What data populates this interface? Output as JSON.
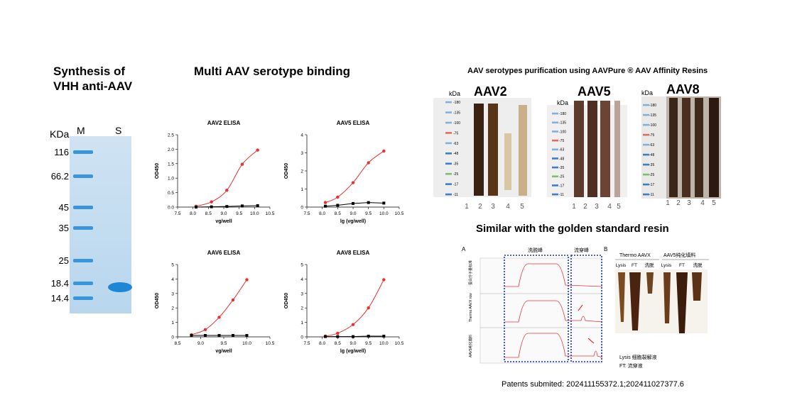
{
  "sections": {
    "synthesis_title": [
      "Synthesis of",
      "VHH anti-AAV"
    ],
    "binding_title": "Multi AAV serotype binding",
    "purification_title": "AAV serotypes purification using AAVPure ® AAV Affinity Resins",
    "similar_title": "Similar with the golden standard resin",
    "patents": "Patents submited: 202411155372.1;202411027377.6"
  },
  "gel_sds": {
    "kda_label": "KDa",
    "lane_labels": [
      "M",
      "S"
    ],
    "marker_labels": [
      "116",
      "66.2",
      "45",
      "35",
      "25",
      "18.4",
      "14.4"
    ]
  },
  "elisa": [
    {
      "title": "AAV2 ELISA",
      "xlabel": "vg/well",
      "ylabel": "OD450",
      "xticks": [
        "7.5",
        "8.0",
        "8.5",
        "9.0",
        "9.5",
        "10.0",
        "10.5"
      ],
      "xmin": 7.5,
      "xmax": 10.5,
      "yticks": [
        "0.0",
        "0.5",
        "1.0",
        "1.5",
        "2.0",
        "2.5"
      ],
      "ymax": 2.5,
      "red": [
        [
          8.1,
          0.03
        ],
        [
          8.6,
          0.18
        ],
        [
          9.1,
          0.58
        ],
        [
          9.6,
          1.48
        ],
        [
          10.1,
          1.97
        ]
      ],
      "black": [
        [
          8.1,
          0.0
        ],
        [
          8.6,
          0.01
        ],
        [
          9.1,
          0.02
        ],
        [
          9.6,
          0.04
        ],
        [
          10.1,
          0.05
        ]
      ]
    },
    {
      "title": "AAV5 ELISA",
      "xlabel": "lg (vg/well)",
      "ylabel": "OD450",
      "xticks": [
        "7.5",
        "8.0",
        "8.5",
        "9.0",
        "9.5",
        "10.0",
        "10.5"
      ],
      "xmin": 7.5,
      "xmax": 10.5,
      "yticks": [
        "0",
        "1",
        "2",
        "3",
        "4"
      ],
      "ymax": 4,
      "red": [
        [
          8.1,
          0.25
        ],
        [
          8.5,
          0.55
        ],
        [
          9.0,
          1.35
        ],
        [
          9.5,
          2.45
        ],
        [
          10.0,
          3.1
        ]
      ],
      "black": [
        [
          8.1,
          0.05
        ],
        [
          8.5,
          0.1
        ],
        [
          9.0,
          0.2
        ],
        [
          9.5,
          0.25
        ],
        [
          10.0,
          0.22
        ]
      ]
    },
    {
      "title": "AAV6 ELISA",
      "xlabel": "vg/well",
      "ylabel": "OD450",
      "xticks": [
        "8.5",
        "9.0",
        "9.5",
        "10.0",
        "10.5"
      ],
      "xmin": 8.5,
      "xmax": 10.5,
      "yticks": [
        "0",
        "1",
        "2",
        "3",
        "4",
        "5"
      ],
      "ymax": 5,
      "red": [
        [
          8.8,
          0.15
        ],
        [
          9.1,
          0.5
        ],
        [
          9.4,
          1.35
        ],
        [
          9.7,
          2.55
        ],
        [
          10.0,
          3.95
        ]
      ],
      "black": [
        [
          8.8,
          0.1
        ],
        [
          9.1,
          0.1
        ],
        [
          9.4,
          0.1
        ],
        [
          9.7,
          0.1
        ],
        [
          10.0,
          0.1
        ]
      ]
    },
    {
      "title": "AAV8 ELISA",
      "xlabel": "lg (vg/well)",
      "ylabel": "OD450",
      "xticks": [
        "7.5",
        "8.0",
        "8.5",
        "9.0",
        "9.5",
        "10.0",
        "10.5"
      ],
      "xmin": 7.5,
      "xmax": 10.5,
      "yticks": [
        "0",
        "1",
        "2",
        "3",
        "4",
        "5"
      ],
      "ymax": 5,
      "red": [
        [
          8.1,
          0.05
        ],
        [
          8.5,
          0.25
        ],
        [
          9.0,
          0.85
        ],
        [
          9.5,
          2.0
        ],
        [
          10.0,
          3.95
        ]
      ],
      "black": [
        [
          8.1,
          0.02
        ],
        [
          8.5,
          0.02
        ],
        [
          9.0,
          0.02
        ],
        [
          9.5,
          0.05
        ],
        [
          10.0,
          0.05
        ]
      ]
    }
  ],
  "purification_gels": [
    {
      "name": "AAV2",
      "kda": "kDa",
      "lanes": [
        "1",
        "2",
        "3",
        "4",
        "5"
      ]
    },
    {
      "name": "AAV5",
      "kda": "kDa",
      "lanes": [
        "1",
        "2",
        "3",
        "4",
        "5"
      ]
    },
    {
      "name": "AAV8",
      "kda": "kDa",
      "lanes": [
        "1",
        "2",
        "3",
        "4",
        "5"
      ]
    }
  ],
  "ladder_labels": [
    "180",
    "135",
    "100",
    "75",
    "63",
    "48",
    "35",
    "25",
    "17",
    "11"
  ],
  "comparison": {
    "panel_a": "A",
    "panel_b": "B",
    "col_elution": "洗脱峰",
    "col_flow": "流穿峰",
    "row_labels": [
      "蛋白分子量标准",
      "Thermo AAVX row",
      "AAV5纯化填料"
    ],
    "gel_headers": [
      "Thermo AAVX",
      "AAV5纯化填料"
    ],
    "gel_lanes": [
      "Lysis",
      "FT",
      "洗脱",
      "Lysis",
      "FT",
      "洗脱"
    ],
    "legend_lysis": "Lysis  细胞裂解液",
    "legend_ft": "FT:  流穿液"
  }
}
